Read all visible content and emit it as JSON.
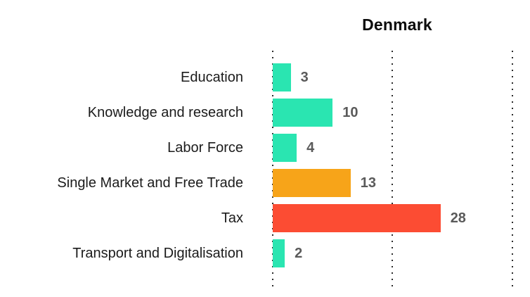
{
  "chart_data": {
    "type": "bar",
    "orientation": "horizontal",
    "title": "Denmark",
    "categories": [
      "Education",
      "Knowledge and research",
      "Labor Force",
      "Single Market and Free Trade",
      "Tax",
      "Transport and Digitalisation"
    ],
    "values": [
      3,
      10,
      4,
      13,
      28,
      2
    ],
    "bar_colors": [
      "#2AE5B1",
      "#2AE5B1",
      "#2AE5B1",
      "#F7A419",
      "#FC4C33",
      "#2AE5B1"
    ],
    "value_label_color": "#5a5a5a",
    "category_label_color": "#1b1b1b",
    "xlabel": "",
    "ylabel": "",
    "xlim": [
      0,
      40
    ],
    "gridlines": {
      "values": [
        0,
        20,
        40
      ],
      "style": "dotted",
      "direction": "vertical",
      "color": "#2b2b2b"
    },
    "legend": "none",
    "data_labels": "outside-end"
  }
}
